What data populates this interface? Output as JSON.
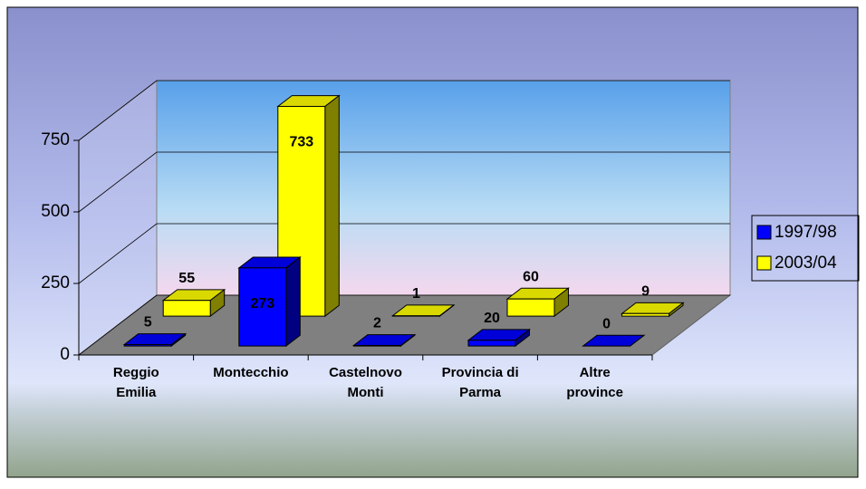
{
  "chart_data": {
    "type": "bar3d",
    "categories": [
      [
        "Reggio",
        "Emilia"
      ],
      [
        "Montecchio"
      ],
      [
        "Castelnovo",
        "Monti"
      ],
      [
        "Provincia di",
        "Parma"
      ],
      [
        "Altre",
        "province"
      ]
    ],
    "series": [
      {
        "name": "1997/98",
        "color": "#0000ff",
        "values": [
          5,
          273,
          2,
          20,
          0
        ]
      },
      {
        "name": "2003/04",
        "color": "#ffff00",
        "values": [
          55,
          733,
          1,
          60,
          9
        ]
      }
    ],
    "ylim": [
      0,
      750
    ],
    "yticks": [
      0,
      250,
      500,
      750
    ],
    "grid": true,
    "legend": "right"
  }
}
